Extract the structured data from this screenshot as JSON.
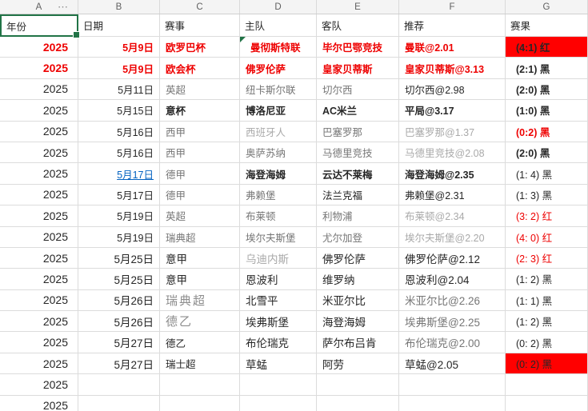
{
  "app": {
    "type": "spreadsheet"
  },
  "colors": {
    "selection_green": "#217346",
    "red_fill": "#ff0000",
    "red_text": "#ee0000",
    "link_blue": "#0563c1",
    "grid_line": "#dcdcdc",
    "letters_bg": "#f4f4f4"
  },
  "column_letters": [
    "A",
    "B",
    "C",
    "D",
    "E",
    "F",
    "G"
  ],
  "more_columns_indicator": "⋯",
  "table": {
    "rows": [
      [
        {
          "t": "年份",
          "s": "hdr sel"
        },
        {
          "t": "日期",
          "s": "hdr"
        },
        {
          "t": "赛事",
          "s": "hdr"
        },
        {
          "t": "主队",
          "s": "hdr"
        },
        {
          "t": "客队",
          "s": "hdr"
        },
        {
          "t": "推荐",
          "s": "hdr"
        },
        {
          "t": "赛果",
          "s": "hdr"
        }
      ],
      [
        {
          "t": "2025",
          "s": "rb"
        },
        {
          "t": "5月9日",
          "s": "rb"
        },
        {
          "t": "欧罗巴杯",
          "s": "rb"
        },
        {
          "t": "曼彻斯特联",
          "s": "rb tri ind"
        },
        {
          "t": "毕尔巴鄂竞技",
          "s": "rb"
        },
        {
          "t": "曼联@2.01",
          "s": "rb"
        },
        {
          "t": "(4:1) 红",
          "s": "b fill"
        }
      ],
      [
        {
          "t": "2025",
          "s": "rb"
        },
        {
          "t": "5月9日",
          "s": "rb"
        },
        {
          "t": "欧会杯",
          "s": "rb"
        },
        {
          "t": "佛罗伦萨",
          "s": "rb"
        },
        {
          "t": "皇家贝蒂斯",
          "s": "rb"
        },
        {
          "t": "皇家贝蒂斯@3.13",
          "s": "rb"
        },
        {
          "t": "(2:1) 黑",
          "s": "b"
        }
      ],
      [
        {
          "t": "2025",
          "s": ""
        },
        {
          "t": "5月11日",
          "s": ""
        },
        {
          "t": "英超",
          "s": "g"
        },
        {
          "t": "纽卡斯尔联",
          "s": "g"
        },
        {
          "t": "切尔西",
          "s": "g"
        },
        {
          "t": "切尔西@2.98",
          "s": ""
        },
        {
          "t": "(2:0) 黑",
          "s": "b"
        }
      ],
      [
        {
          "t": "2025",
          "s": ""
        },
        {
          "t": "5月15日",
          "s": ""
        },
        {
          "t": "意杯",
          "s": "b"
        },
        {
          "t": "博洛尼亚",
          "s": "b"
        },
        {
          "t": "AC米兰",
          "s": "b"
        },
        {
          "t": "平局@3.17",
          "s": "b"
        },
        {
          "t": "(1:0) 黑",
          "s": "b"
        }
      ],
      [
        {
          "t": "2025",
          "s": ""
        },
        {
          "t": "5月16日",
          "s": ""
        },
        {
          "t": "西甲",
          "s": "g"
        },
        {
          "t": "西班牙人",
          "s": "lg"
        },
        {
          "t": "巴塞罗那",
          "s": "g"
        },
        {
          "t": "巴塞罗那@1.37",
          "s": "lg"
        },
        {
          "t": "(0:2) 黑",
          "s": "rb"
        }
      ],
      [
        {
          "t": "2025",
          "s": ""
        },
        {
          "t": "5月16日",
          "s": ""
        },
        {
          "t": "西甲",
          "s": "g"
        },
        {
          "t": "奥萨苏纳",
          "s": "g"
        },
        {
          "t": "马德里竞技",
          "s": "g"
        },
        {
          "t": "马德里竞技@2.08",
          "s": "lg"
        },
        {
          "t": "(2:0) 黑",
          "s": "b"
        }
      ],
      [
        {
          "t": "2025",
          "s": ""
        },
        {
          "t": "5月17日",
          "s": "link"
        },
        {
          "t": "德甲",
          "s": "g"
        },
        {
          "t": "海登海姆",
          "s": "b"
        },
        {
          "t": "云达不莱梅",
          "s": "b"
        },
        {
          "t": "海登海姆@2.35",
          "s": "b"
        },
        {
          "t": "(1: 4) 黑",
          "s": ""
        }
      ],
      [
        {
          "t": "2025",
          "s": ""
        },
        {
          "t": "5月17日",
          "s": ""
        },
        {
          "t": "德甲",
          "s": "g"
        },
        {
          "t": "弗赖堡",
          "s": "g"
        },
        {
          "t": "法兰克福",
          "s": ""
        },
        {
          "t": "弗赖堡@2.31",
          "s": ""
        },
        {
          "t": "(1: 3) 黑",
          "s": ""
        }
      ],
      [
        {
          "t": "2025",
          "s": ""
        },
        {
          "t": "5月19日",
          "s": ""
        },
        {
          "t": "英超",
          "s": "g"
        },
        {
          "t": "布莱顿",
          "s": "g"
        },
        {
          "t": "利物浦",
          "s": "g"
        },
        {
          "t": "布莱顿@2.34",
          "s": "lg"
        },
        {
          "t": "(3: 2) 红",
          "s": "r"
        }
      ],
      [
        {
          "t": "2025",
          "s": ""
        },
        {
          "t": "5月19日",
          "s": ""
        },
        {
          "t": "瑞典超",
          "s": "g"
        },
        {
          "t": "埃尔夫斯堡",
          "s": "g"
        },
        {
          "t": "尤尔加登",
          "s": "g"
        },
        {
          "t": "埃尔夫斯堡@2.20",
          "s": "lg"
        },
        {
          "t": "(4: 0) 红",
          "s": "r"
        }
      ],
      [
        {
          "t": "2025",
          "s": ""
        },
        {
          "t": "5月25日",
          "s": "big"
        },
        {
          "t": "意甲",
          "s": "big"
        },
        {
          "t": "乌迪内斯",
          "s": "lg big"
        },
        {
          "t": "佛罗伦萨",
          "s": "big"
        },
        {
          "t": "佛罗伦萨@2.12",
          "s": "big"
        },
        {
          "t": "(2: 3) 红",
          "s": "r"
        }
      ],
      [
        {
          "t": "2025",
          "s": ""
        },
        {
          "t": "5月25日",
          "s": "big"
        },
        {
          "t": "意甲",
          "s": "big"
        },
        {
          "t": "恩波利",
          "s": "big"
        },
        {
          "t": "维罗纳",
          "s": "big"
        },
        {
          "t": "恩波利@2.04",
          "s": "big"
        },
        {
          "t": "(1: 2) 黑",
          "s": ""
        }
      ],
      [
        {
          "t": "2025",
          "s": ""
        },
        {
          "t": "5月26日",
          "s": "big"
        },
        {
          "t": "瑞典超",
          "s": "serif"
        },
        {
          "t": "北雪平",
          "s": "big"
        },
        {
          "t": "米亚尔比",
          "s": "big"
        },
        {
          "t": "米亚尔比@2.26",
          "s": "g big"
        },
        {
          "t": "(1: 1) 黑",
          "s": ""
        }
      ],
      [
        {
          "t": "2025",
          "s": ""
        },
        {
          "t": "5月26日",
          "s": "big"
        },
        {
          "t": "德乙",
          "s": "serif"
        },
        {
          "t": "埃弗斯堡",
          "s": "big"
        },
        {
          "t": "海登海姆",
          "s": "big"
        },
        {
          "t": "埃弗斯堡@2.25",
          "s": "g big"
        },
        {
          "t": "(1: 2) 黑",
          "s": ""
        }
      ],
      [
        {
          "t": "2025",
          "s": ""
        },
        {
          "t": "5月27日",
          "s": "big"
        },
        {
          "t": "德乙",
          "s": ""
        },
        {
          "t": "布伦瑞克",
          "s": "big"
        },
        {
          "t": "萨尔布吕肯",
          "s": "big"
        },
        {
          "t": "布伦瑞克@2.00",
          "s": "g big"
        },
        {
          "t": "(0: 2) 黑",
          "s": ""
        }
      ],
      [
        {
          "t": "2025",
          "s": ""
        },
        {
          "t": "5月27日",
          "s": "big"
        },
        {
          "t": "瑞士超",
          "s": ""
        },
        {
          "t": "草蜢",
          "s": "big"
        },
        {
          "t": "阿劳",
          "s": "big"
        },
        {
          "t": "草蜢@2.05",
          "s": "big"
        },
        {
          "t": "(0: 2) 黑",
          "s": "fill"
        }
      ],
      [
        {
          "t": "2025",
          "s": ""
        },
        {
          "t": "",
          "s": ""
        },
        {
          "t": "",
          "s": ""
        },
        {
          "t": "",
          "s": ""
        },
        {
          "t": "",
          "s": ""
        },
        {
          "t": "",
          "s": ""
        },
        {
          "t": "",
          "s": ""
        }
      ],
      [
        {
          "t": "2025",
          "s": ""
        },
        {
          "t": "",
          "s": ""
        },
        {
          "t": "",
          "s": ""
        },
        {
          "t": "",
          "s": ""
        },
        {
          "t": "",
          "s": ""
        },
        {
          "t": "",
          "s": ""
        },
        {
          "t": "",
          "s": ""
        }
      ]
    ]
  }
}
